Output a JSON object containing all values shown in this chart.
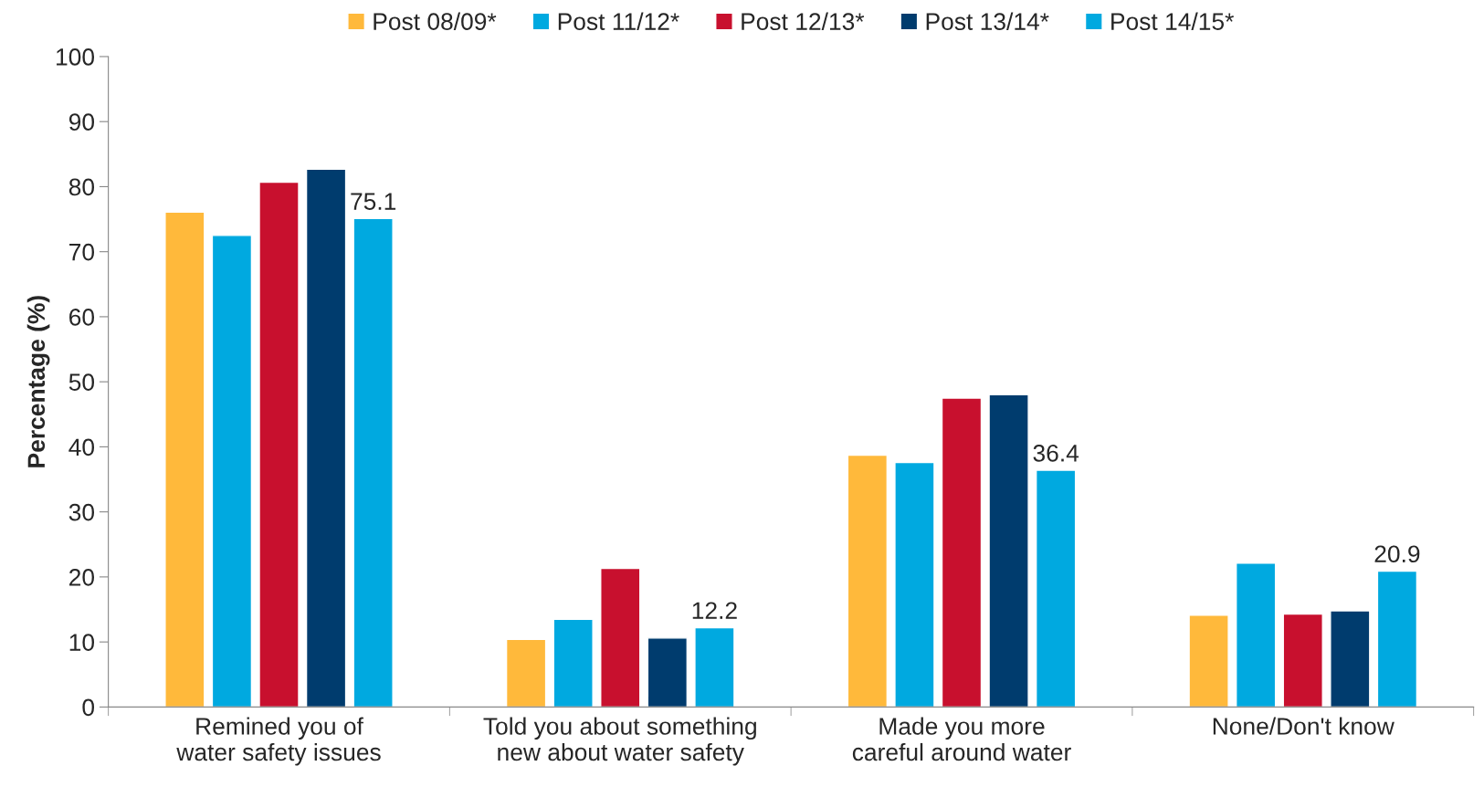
{
  "chart_data": {
    "type": "bar",
    "ylabel": "Percentage (%)",
    "categories": [
      "Remined you of water safety issues",
      "Told you about something new about water safety",
      "Made you more careful around water",
      "None/Don't know"
    ],
    "series": [
      {
        "name": "Post 08/09*",
        "color": "#ffb93b",
        "values": [
          76.1,
          10.4,
          38.7,
          14.1
        ]
      },
      {
        "name": "Post 11/12*",
        "color": "#00a9e0",
        "values": [
          72.5,
          13.5,
          37.6,
          22.1
        ]
      },
      {
        "name": "Post 12/13*",
        "color": "#c8102e",
        "values": [
          80.7,
          21.3,
          47.5,
          14.3
        ]
      },
      {
        "name": "Post 13/14*",
        "color": "#003c6e",
        "values": [
          82.7,
          10.6,
          48.0,
          14.8
        ]
      },
      {
        "name": "Post 14/15*",
        "color": "#00a9e0",
        "values": [
          75.1,
          12.2,
          36.4,
          20.9
        ],
        "value_labels": [
          "75.1",
          "12.2",
          "36.4",
          "20.9"
        ]
      }
    ],
    "ylim": [
      0,
      100
    ],
    "yticks": [
      0,
      10,
      20,
      30,
      40,
      50,
      60,
      70,
      80,
      90,
      100
    ],
    "grid": false,
    "legend": "top"
  }
}
